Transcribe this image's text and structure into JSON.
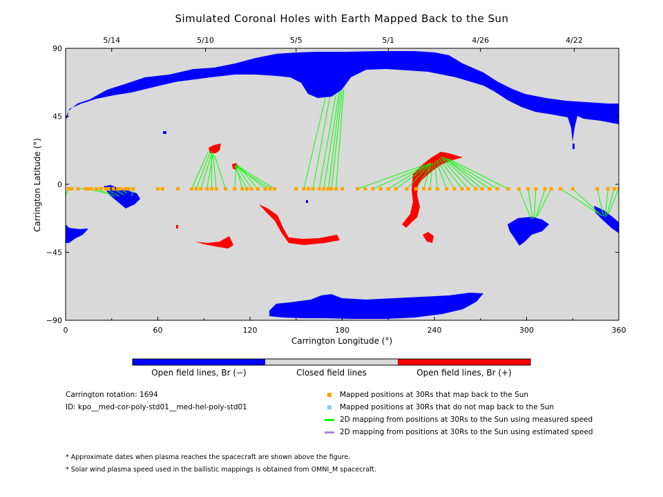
{
  "title": "Simulated Coronal Holes with Earth Mapped Back to the Sun",
  "colors": {
    "background_plot": "#d9d9d9",
    "open_negative": "#0000ff",
    "open_positive": "#ff0000",
    "closed": "#d9d9d9",
    "mapped_point": "#ffa500",
    "unmapped_point": "#87cefa",
    "measured_line": "#00ff00",
    "estimated_line": "#b07fe0"
  },
  "colorbar": {
    "labels": [
      "Open field lines, Br (−)",
      "Closed field lines",
      "Open field lines, Br (+)"
    ]
  },
  "info": {
    "rotation": "Carrington rotation: 1694",
    "id": "ID: kpo__med-cor-poly-std01__med-hel-poly-std01"
  },
  "legend": [
    {
      "label": "Mapped positions at 30Rs that map back to the Sun",
      "kind": "square",
      "color": "#ffa500"
    },
    {
      "label": "Mapped positions at 30Rs that do not map back to the Sun",
      "kind": "square",
      "color": "#87cefa"
    },
    {
      "label": "2D mapping from positions at 30Rs to the Sun using measured speed",
      "kind": "line",
      "color": "#00ff00"
    },
    {
      "label": "2D mapping from positions at 30Rs to the Sun using estimated speed",
      "kind": "line",
      "color": "#b07fe0"
    }
  ],
  "notes": [
    "* Approximate dates when plasma reaches the spacecraft are shown above the figure.",
    "* Solar wind plasma speed used in the ballistic mappings is obtained from OMNI_M spacecraft."
  ],
  "chart_data": {
    "type": "scatter",
    "title": "Simulated Coronal Holes with Earth Mapped Back to the Sun",
    "xlabel": "Carrington Longitude (°)",
    "ylabel": "Carrington Latitude (°)",
    "xlim": [
      0,
      360
    ],
    "ylim": [
      -90,
      90
    ],
    "x_ticks": [
      0,
      60,
      120,
      180,
      240,
      300,
      360
    ],
    "y_ticks": [
      {
        "value": 90,
        "label": "90"
      },
      {
        "value": 45,
        "label": "45"
      },
      {
        "value": 0,
        "label": "0"
      },
      {
        "value": -45,
        "label": "−45"
      },
      {
        "value": -90,
        "label": "−90"
      }
    ],
    "top_axis_dates": [
      {
        "label": "5/14",
        "lon": 30
      },
      {
        "label": "5/10",
        "lon": 91
      },
      {
        "label": "5/5",
        "lon": 150
      },
      {
        "label": "5/1",
        "lon": 210
      },
      {
        "label": "4/26",
        "lon": 270
      },
      {
        "label": "4/22",
        "lon": 331
      }
    ],
    "mapped_points": {
      "lat": -3,
      "lon": [
        2,
        4,
        8,
        13,
        15,
        17,
        20,
        23,
        26,
        28,
        31,
        34,
        36,
        39,
        41,
        44,
        60,
        63,
        73,
        82,
        85,
        88,
        92,
        95,
        98,
        104,
        110,
        115,
        118,
        121,
        125,
        130,
        133,
        136,
        150,
        155,
        158,
        161,
        165,
        168,
        171,
        173,
        176,
        180,
        190,
        195,
        200,
        205,
        210,
        215,
        222,
        228,
        233,
        237,
        242,
        248,
        253,
        258,
        262,
        267,
        271,
        276,
        281,
        288,
        295,
        301,
        306,
        312,
        316,
        322,
        330,
        346,
        353,
        357,
        360
      ]
    },
    "mapping_lines": [
      [
        2,
        -3,
        -2,
        -12
      ],
      [
        8,
        -3,
        18,
        -3
      ],
      [
        13,
        -3,
        28,
        -6
      ],
      [
        20,
        -3,
        32,
        -8
      ],
      [
        26,
        -3,
        35,
        -8
      ],
      [
        31,
        -3,
        38,
        -7
      ],
      [
        36,
        -3,
        40,
        -6
      ],
      [
        41,
        -3,
        42,
        -5
      ],
      [
        44,
        -3,
        43,
        -8
      ],
      [
        82,
        -3,
        93,
        22
      ],
      [
        85,
        -3,
        94,
        21
      ],
      [
        88,
        -3,
        95,
        20
      ],
      [
        92,
        -3,
        96,
        21
      ],
      [
        95,
        -3,
        95,
        22
      ],
      [
        98,
        -3,
        96,
        20
      ],
      [
        104,
        -3,
        97,
        19
      ],
      [
        110,
        -3,
        111,
        13
      ],
      [
        115,
        -3,
        111,
        12
      ],
      [
        118,
        -3,
        110,
        12
      ],
      [
        121,
        -3,
        111,
        13
      ],
      [
        125,
        -3,
        112,
        13
      ],
      [
        130,
        -3,
        112,
        12
      ],
      [
        133,
        -3,
        112,
        11
      ],
      [
        136,
        -3,
        112,
        12
      ],
      [
        155,
        -3,
        169,
        57
      ],
      [
        161,
        -3,
        172,
        58
      ],
      [
        165,
        -3,
        176,
        60
      ],
      [
        168,
        -3,
        178,
        61
      ],
      [
        171,
        -3,
        179,
        62
      ],
      [
        173,
        -3,
        180,
        62
      ],
      [
        176,
        -3,
        181,
        63
      ],
      [
        190,
        -3,
        234,
        13
      ],
      [
        200,
        -3,
        236,
        13
      ],
      [
        210,
        -3,
        237,
        14
      ],
      [
        215,
        -3,
        238,
        14
      ],
      [
        222,
        -3,
        238,
        14
      ],
      [
        228,
        -3,
        238,
        13
      ],
      [
        233,
        -3,
        238,
        14
      ],
      [
        237,
        -3,
        239,
        14
      ],
      [
        242,
        -3,
        240,
        15
      ],
      [
        248,
        -3,
        241,
        16
      ],
      [
        253,
        -3,
        242,
        16
      ],
      [
        258,
        -3,
        243,
        17
      ],
      [
        262,
        -3,
        244,
        18
      ],
      [
        267,
        -3,
        245,
        18
      ],
      [
        271,
        -3,
        246,
        18
      ],
      [
        276,
        -3,
        247,
        17
      ],
      [
        281,
        -3,
        248,
        17
      ],
      [
        288,
        -3,
        249,
        17
      ],
      [
        295,
        -3,
        303,
        -23
      ],
      [
        301,
        -3,
        304,
        -23
      ],
      [
        306,
        -3,
        305,
        -22
      ],
      [
        312,
        -3,
        306,
        -22
      ],
      [
        316,
        -3,
        307,
        -21
      ],
      [
        322,
        -3,
        348,
        -20
      ],
      [
        330,
        -3,
        349,
        -21
      ],
      [
        346,
        -3,
        350,
        -21
      ],
      [
        353,
        -3,
        351,
        -22
      ],
      [
        357,
        -3,
        352,
        -21
      ],
      [
        360,
        -3,
        353,
        -20
      ]
    ]
  }
}
